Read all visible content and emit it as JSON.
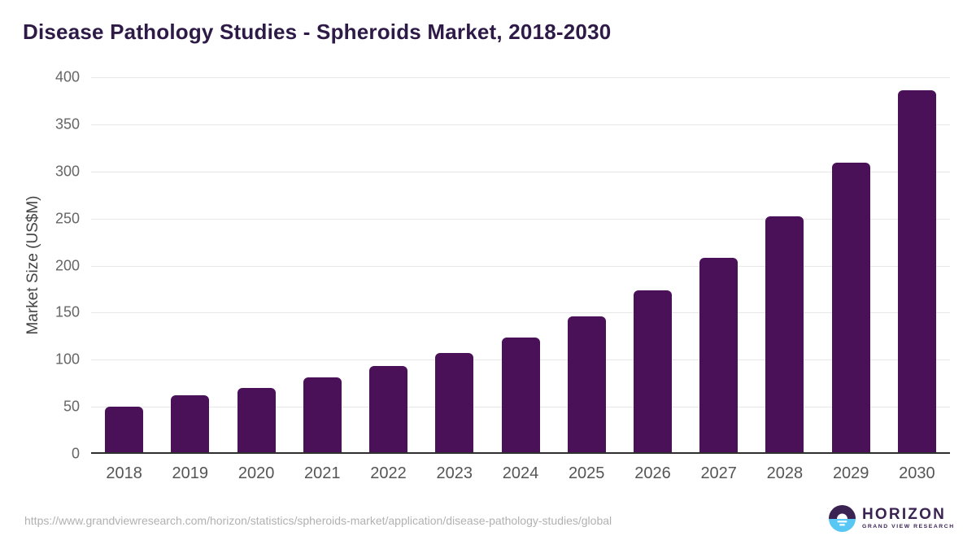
{
  "chart_data": {
    "type": "bar",
    "title": "Disease Pathology Studies - Spheroids Market, 2018-2030",
    "categories": [
      "2018",
      "2019",
      "2020",
      "2021",
      "2022",
      "2023",
      "2024",
      "2025",
      "2026",
      "2027",
      "2028",
      "2029",
      "2030"
    ],
    "values": [
      50,
      62,
      70,
      81,
      93,
      107,
      124,
      146,
      174,
      208,
      252,
      309,
      386
    ],
    "xlabel": "",
    "ylabel": "Market Size (US$M)",
    "ylim": [
      0,
      400
    ],
    "yticks": [
      0,
      50,
      100,
      150,
      200,
      250,
      300,
      350,
      400
    ],
    "grid": "horizontal-only",
    "legend": "none",
    "bar_color": "#4A1158",
    "title_color": "#2E1A47"
  },
  "footer": {
    "source_url": "https://www.grandviewresearch.com/horizon/statistics/spheroids-market/application/disease-pathology-studies/global",
    "logo": {
      "brand": "HORIZON",
      "tagline": "GRAND VIEW RESEARCH",
      "mark_top_color": "#3A2353",
      "mark_bottom_color": "#58C7F3"
    }
  }
}
